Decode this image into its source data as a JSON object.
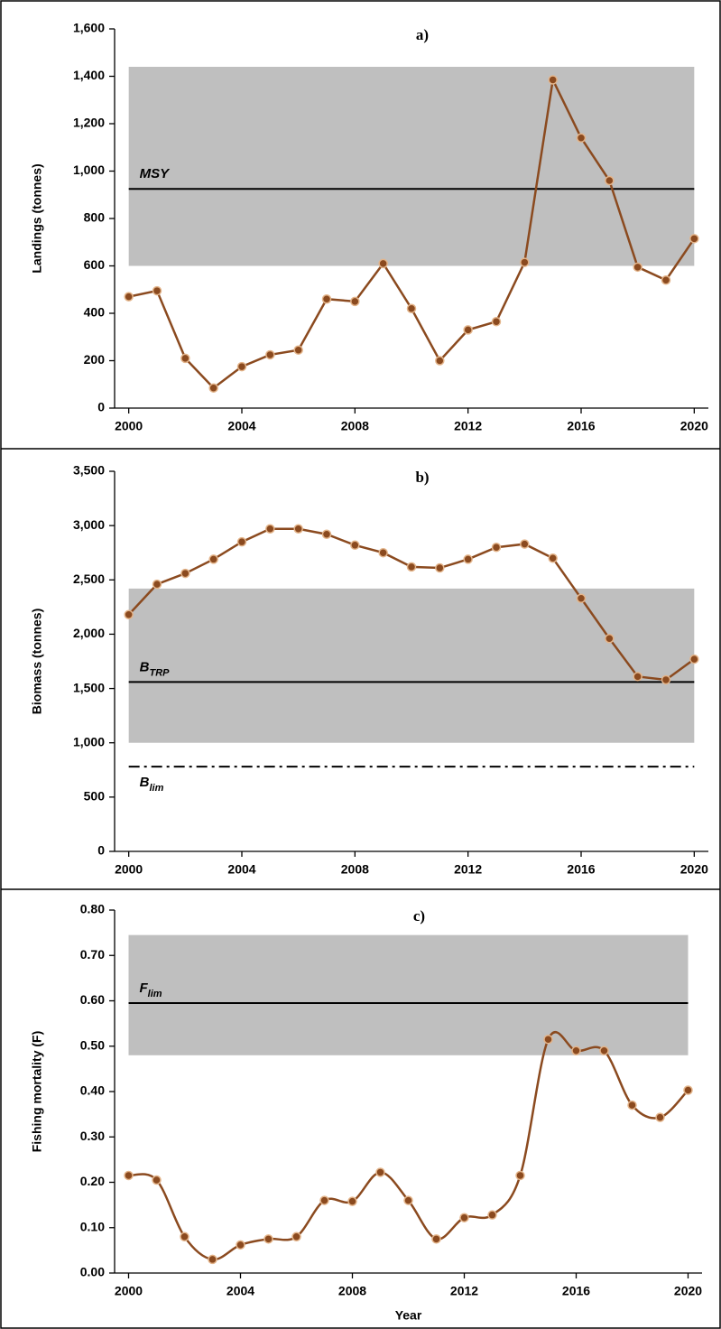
{
  "chart_data": [
    {
      "type": "line",
      "title": "a)",
      "y_label": "Landings (tonnes)",
      "x": [
        2000,
        2001,
        2002,
        2003,
        2004,
        2005,
        2006,
        2007,
        2008,
        2009,
        2010,
        2011,
        2012,
        2013,
        2014,
        2015,
        2016,
        2017,
        2018,
        2019,
        2020
      ],
      "values": [
        470,
        495,
        210,
        85,
        175,
        225,
        245,
        460,
        450,
        610,
        420,
        200,
        330,
        365,
        615,
        1385,
        1140,
        960,
        595,
        540,
        715
      ],
      "color": "#8b4a1f",
      "smooth": false,
      "grid": false,
      "xlim": [
        1999.5,
        2020.5
      ],
      "xticks": [
        2000,
        2004,
        2008,
        2012,
        2016,
        2020
      ],
      "ylim": [
        0,
        1600
      ],
      "yticks": [
        0,
        200,
        400,
        600,
        800,
        {
          "value": 1000,
          "label": "1,000"
        },
        {
          "value": 1200,
          "label": "1,200"
        },
        {
          "value": 1400,
          "label": "1,400"
        },
        {
          "value": 1600,
          "label": "1,600"
        }
      ],
      "shaded_range": [
        600,
        1440
      ],
      "shaded_color": "#bfbfbf",
      "reference_lines": [
        {
          "label": "MSY",
          "value": 925,
          "style": "solid"
        }
      ]
    },
    {
      "type": "line",
      "title": "b)",
      "y_label": "Biomass (tonnes)",
      "x": [
        2000,
        2001,
        2002,
        2003,
        2004,
        2005,
        2006,
        2007,
        2008,
        2009,
        2010,
        2011,
        2012,
        2013,
        2014,
        2015,
        2016,
        2017,
        2018,
        2019,
        2020
      ],
      "values": [
        2180,
        2460,
        2560,
        2690,
        2850,
        2970,
        2970,
        2920,
        2820,
        2750,
        2620,
        2610,
        2690,
        2800,
        2830,
        2700,
        2330,
        1960,
        1610,
        1580,
        1770
      ],
      "color": "#8b4a1f",
      "smooth": false,
      "grid": false,
      "xlim": [
        1999.5,
        2020.5
      ],
      "xticks": [
        2000,
        2004,
        2008,
        2012,
        2016,
        2020
      ],
      "ylim": [
        0,
        3500
      ],
      "yticks": [
        0,
        500,
        {
          "value": 1000,
          "label": "1,000"
        },
        {
          "value": 1500,
          "label": "1,500"
        },
        {
          "value": 2000,
          "label": "2,000"
        },
        {
          "value": 2500,
          "label": "2,500"
        },
        {
          "value": 3000,
          "label": "3,000"
        },
        {
          "value": 3500,
          "label": "3,500"
        }
      ],
      "shaded_range": [
        1000,
        2420
      ],
      "shaded_color": "#bfbfbf",
      "reference_lines": [
        {
          "label": "B",
          "label_sub": "TRP",
          "value": 1560,
          "style": "solid"
        },
        {
          "label": "B",
          "label_sub": "lim",
          "value": 780,
          "style": "dashdot"
        }
      ]
    },
    {
      "type": "line",
      "title": "c)",
      "y_label": "Fishing mortality (F)",
      "x_label": "Year",
      "x": [
        2000,
        2001,
        2002,
        2003,
        2004,
        2005,
        2006,
        2007,
        2008,
        2009,
        2010,
        2011,
        2012,
        2013,
        2014,
        2015,
        2016,
        2017,
        2018,
        2019,
        2020
      ],
      "values": [
        0.215,
        0.205,
        0.08,
        0.03,
        0.062,
        0.075,
        0.08,
        0.16,
        0.158,
        0.222,
        0.16,
        0.075,
        0.122,
        0.128,
        0.215,
        0.515,
        0.49,
        0.49,
        0.37,
        0.343,
        0.403
      ],
      "color": "#8b4a1f",
      "smooth": true,
      "grid": false,
      "xlim": [
        1999.5,
        2020.5
      ],
      "xticks": [
        2000,
        2004,
        2008,
        2012,
        2016,
        2020
      ],
      "ylim": [
        0,
        0.8
      ],
      "yticks": [
        {
          "value": 0,
          "label": "0.00"
        },
        {
          "value": 0.1,
          "label": "0.10"
        },
        {
          "value": 0.2,
          "label": "0.20"
        },
        {
          "value": 0.3,
          "label": "0.30"
        },
        {
          "value": 0.4,
          "label": "0.40"
        },
        {
          "value": 0.5,
          "label": "0.50"
        },
        {
          "value": 0.6,
          "label": "0.60"
        },
        {
          "value": 0.7,
          "label": "0.70"
        },
        {
          "value": 0.8,
          "label": "0.80"
        }
      ],
      "shaded_range": [
        0.48,
        0.745
      ],
      "shaded_color": "#bfbfbf",
      "reference_lines": [
        {
          "label": "F",
          "label_sub": "lim",
          "value": 0.595,
          "style": "solid"
        }
      ]
    }
  ]
}
